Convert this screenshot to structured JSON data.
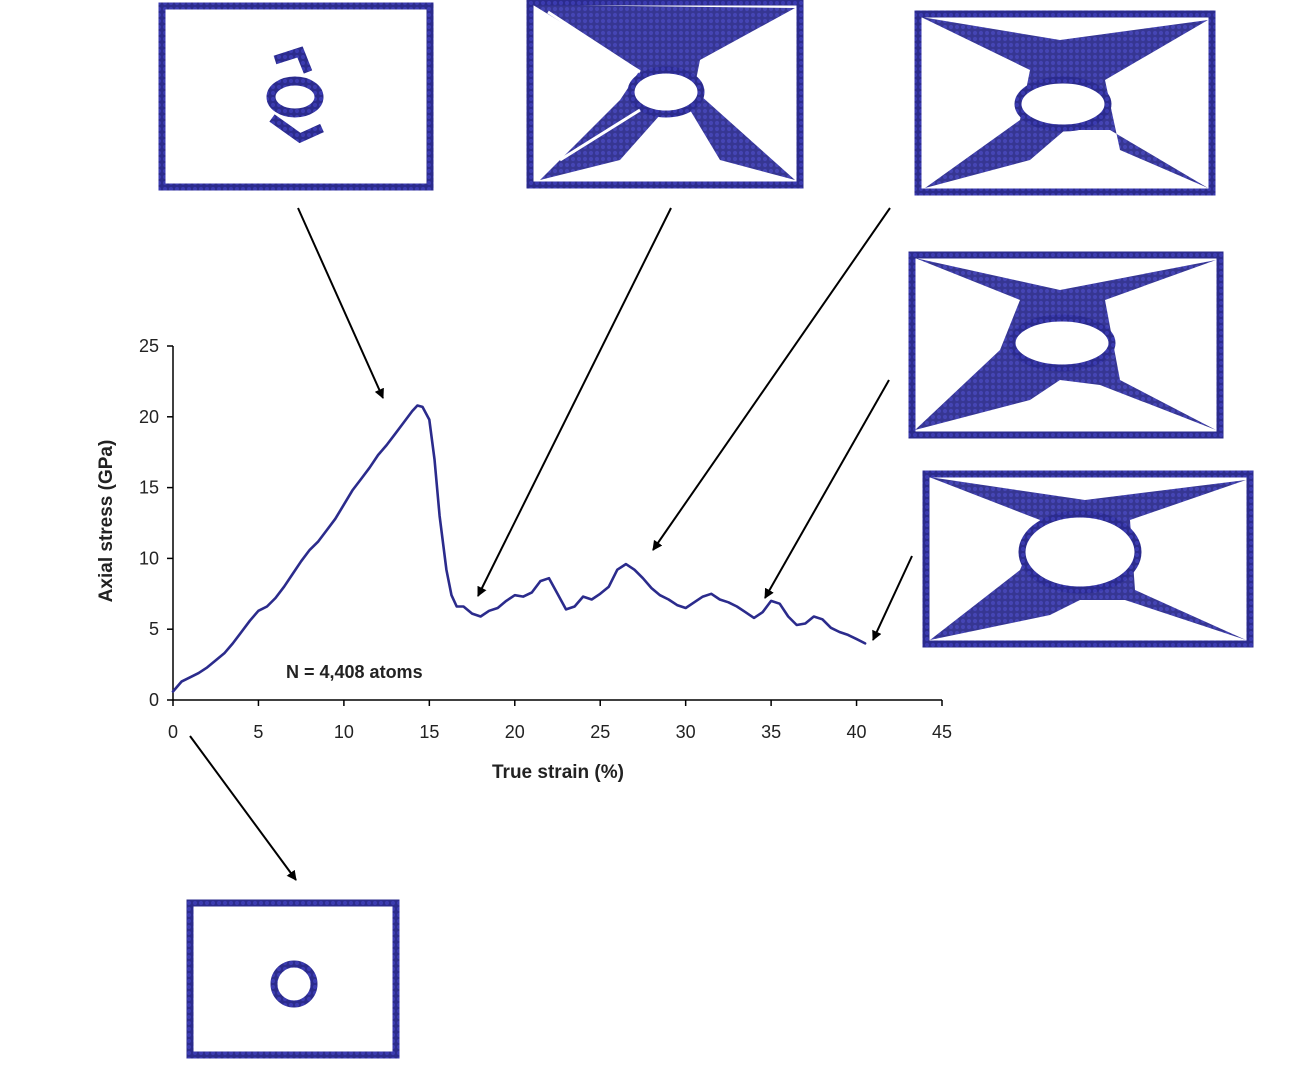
{
  "chart_data": {
    "type": "line",
    "title": "",
    "xlabel": "True strain (%)",
    "ylabel": "Axial stress (GPa)",
    "xlim": [
      0,
      45
    ],
    "ylim": [
      0,
      25
    ],
    "xticks": [
      "0",
      "5",
      "10",
      "15",
      "20",
      "25",
      "30",
      "35",
      "40",
      "45"
    ],
    "yticks": [
      "0",
      "5",
      "10",
      "15",
      "20",
      "25"
    ],
    "grid": false,
    "annotation": "N = 4,408 atoms",
    "line_color": "#2b2b8c",
    "x": [
      0,
      0.5,
      1,
      1.5,
      2,
      2.5,
      3,
      3.5,
      4,
      4.5,
      5,
      5.5,
      6,
      6.5,
      7,
      7.5,
      8,
      8.5,
      9,
      9.5,
      10,
      10.5,
      11,
      11.5,
      12,
      12.5,
      13,
      13.5,
      14,
      14.3,
      14.6,
      15,
      15.3,
      15.6,
      16,
      16.3,
      16.6,
      17,
      17.5,
      18,
      18.5,
      19,
      19.5,
      20,
      20.5,
      21,
      21.5,
      22,
      22.5,
      23,
      23.5,
      24,
      24.5,
      25,
      25.5,
      26,
      26.5,
      27,
      27.5,
      28,
      28.5,
      29,
      29.5,
      30,
      30.5,
      31,
      31.5,
      32,
      32.5,
      33,
      33.5,
      34,
      34.5,
      35,
      35.5,
      36,
      36.5,
      37,
      37.5,
      38,
      38.5,
      39,
      39.5,
      40,
      40.5
    ],
    "series": [
      {
        "values": [
          0.6,
          1.3,
          1.6,
          1.9,
          2.3,
          2.8,
          3.3,
          4.0,
          4.8,
          5.6,
          6.3,
          6.6,
          7.2,
          8.0,
          8.9,
          9.8,
          10.6,
          11.2,
          12.0,
          12.8,
          13.8,
          14.8,
          15.6,
          16.4,
          17.3,
          18.0,
          18.8,
          19.6,
          20.4,
          20.8,
          20.7,
          19.8,
          17.0,
          13.0,
          9.2,
          7.4,
          6.6,
          6.6,
          6.1,
          5.9,
          6.3,
          6.5,
          7.0,
          7.4,
          7.3,
          7.6,
          8.4,
          8.6,
          7.5,
          6.4,
          6.6,
          7.3,
          7.1,
          7.5,
          8.0,
          9.2,
          9.6,
          9.2,
          8.6,
          7.9,
          7.4,
          7.1,
          6.7,
          6.5,
          6.9,
          7.3,
          7.5,
          7.1,
          6.9,
          6.6,
          6.2,
          5.8,
          6.2,
          7.0,
          6.8,
          5.9,
          5.3,
          5.4,
          5.9,
          5.7,
          5.1,
          4.8,
          4.6,
          4.3,
          4.0
        ]
      }
    ]
  }
}
